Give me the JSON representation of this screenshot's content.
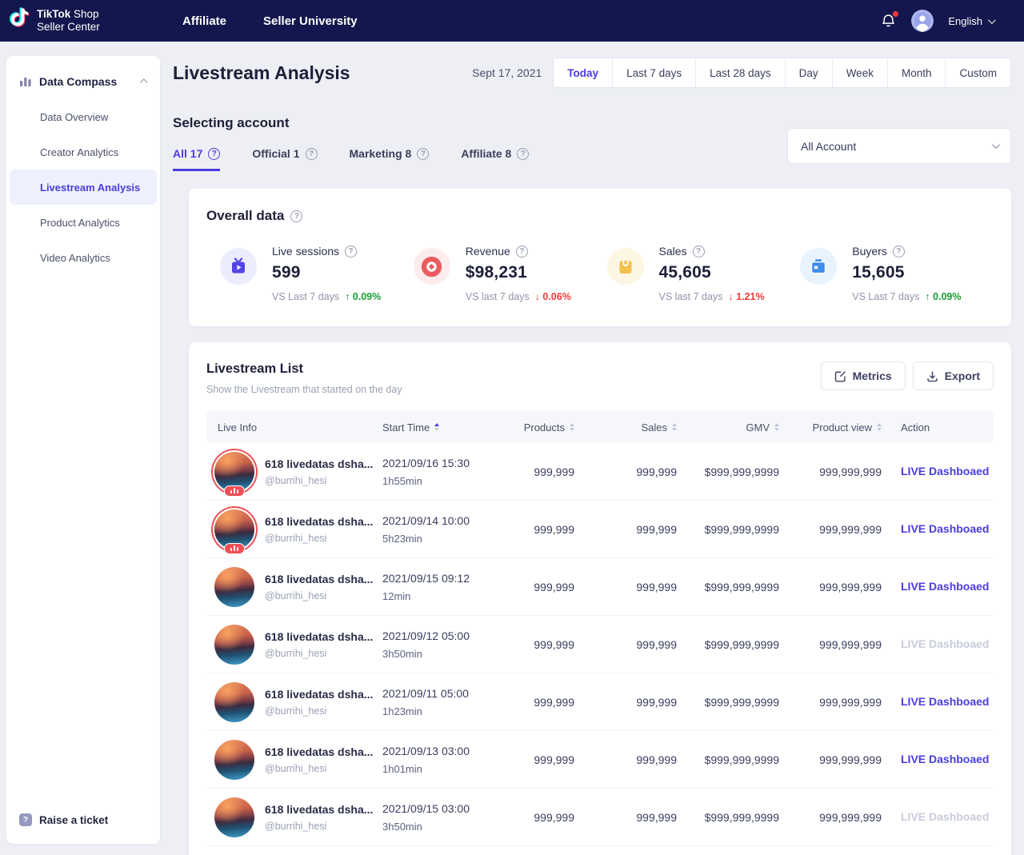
{
  "topnav": {
    "logo": {
      "brand": "TikTok",
      "suffix": " Shop",
      "line2": "Seller Center"
    },
    "nav_items": [
      "Affiliate",
      "Seller University"
    ],
    "language": "English"
  },
  "sidebar": {
    "section_label": "Data Compass",
    "items": [
      {
        "label": "Data Overview",
        "active": false
      },
      {
        "label": "Creator Analytics",
        "active": false
      },
      {
        "label": "Livestream Analysis",
        "active": true
      },
      {
        "label": "Product Analytics",
        "active": false
      },
      {
        "label": "Video Analytics",
        "active": false
      }
    ],
    "raise_ticket_label": "Raise a ticket"
  },
  "header": {
    "title": "Livestream Analysis",
    "date_label": "Sept 17, 2021",
    "range_buttons": [
      {
        "label": "Today",
        "active": true
      },
      {
        "label": "Last 7 days",
        "active": false
      },
      {
        "label": "Last 28 days",
        "active": false
      },
      {
        "label": "Day",
        "active": false
      },
      {
        "label": "Week",
        "active": false
      },
      {
        "label": "Month",
        "active": false
      },
      {
        "label": "Custom",
        "active": false
      }
    ]
  },
  "account_section": {
    "heading": "Selecting account",
    "tabs": [
      {
        "label": "All 17",
        "active": true
      },
      {
        "label": "Official 1",
        "active": false
      },
      {
        "label": "Marketing 8",
        "active": false
      },
      {
        "label": "Affiliate 8",
        "active": false
      }
    ],
    "account_dropdown_value": "All Account"
  },
  "overall_data": {
    "heading": "Overall data",
    "stats": [
      {
        "label": "Live sessions",
        "value": "599",
        "compare_label": "VS Last 7 days",
        "delta": "0.09%",
        "direction": "up",
        "icon": "live-tv-icon"
      },
      {
        "label": "Revenue",
        "value": "$98,231",
        "compare_label": "VS last 7 days",
        "delta": "0.06%",
        "direction": "down",
        "icon": "record-icon"
      },
      {
        "label": "Sales",
        "value": "45,605",
        "compare_label": "VS last 7 days",
        "delta": "1.21%",
        "direction": "down",
        "icon": "shopping-bag-icon"
      },
      {
        "label": "Buyers",
        "value": "15,605",
        "compare_label": "VS Last 7 days",
        "delta": "0.09%",
        "direction": "up",
        "icon": "wallet-icon"
      }
    ]
  },
  "livestream_list": {
    "title": "Livestream List",
    "subtitle": "Show the Livestream that started on the day",
    "metrics_button": "Metrics",
    "export_button": "Export",
    "columns": [
      {
        "label": "Live Info",
        "sortable": false,
        "align": "left"
      },
      {
        "label": "Start Time",
        "sortable": true,
        "sorted": "asc",
        "align": "left"
      },
      {
        "label": "Products",
        "sortable": true,
        "align": "right"
      },
      {
        "label": "Sales",
        "sortable": true,
        "align": "right"
      },
      {
        "label": "GMV",
        "sortable": true,
        "align": "right"
      },
      {
        "label": "Product view",
        "sortable": true,
        "align": "right"
      },
      {
        "label": "Action",
        "sortable": false,
        "align": "left"
      }
    ],
    "rows": [
      {
        "name": "618 livedatas dsha...",
        "handle": "@burrihi_hesi",
        "start_time": "2021/09/16 15:30",
        "duration": "1h55min",
        "products": "999,999",
        "sales": "999,999",
        "gmv": "$999,999,9999",
        "product_view": "999,999,999",
        "action": "LIVE Dashboaed",
        "is_live": true,
        "action_disabled": false
      },
      {
        "name": "618 livedatas dsha...",
        "handle": "@burrihi_hesi",
        "start_time": "2021/09/14 10:00",
        "duration": "5h23min",
        "products": "999,999",
        "sales": "999,999",
        "gmv": "$999,999,9999",
        "product_view": "999,999,999",
        "action": "LIVE Dashboaed",
        "is_live": true,
        "action_disabled": false
      },
      {
        "name": "618 livedatas dsha...",
        "handle": "@burrihi_hesi",
        "start_time": "2021/09/15 09:12",
        "duration": "12min",
        "products": "999,999",
        "sales": "999,999",
        "gmv": "$999,999,9999",
        "product_view": "999,999,999",
        "action": "LIVE Dashboaed",
        "is_live": false,
        "action_disabled": false
      },
      {
        "name": "618 livedatas dsha...",
        "handle": "@burrihi_hesi",
        "start_time": "2021/09/12 05:00",
        "duration": "3h50min",
        "products": "999,999",
        "sales": "999,999",
        "gmv": "$999,999,9999",
        "product_view": "999,999,999",
        "action": "LIVE Dashboaed",
        "is_live": false,
        "action_disabled": true
      },
      {
        "name": "618 livedatas dsha...",
        "handle": "@burrihi_hesi",
        "start_time": "2021/09/11 05:00",
        "duration": "1h23min",
        "products": "999,999",
        "sales": "999,999",
        "gmv": "$999,999,9999",
        "product_view": "999,999,999",
        "action": "LIVE Dashboaed",
        "is_live": false,
        "action_disabled": false
      },
      {
        "name": "618 livedatas dsha...",
        "handle": "@burrihi_hesi",
        "start_time": "2021/09/13 03:00",
        "duration": "1h01min",
        "products": "999,999",
        "sales": "999,999",
        "gmv": "$999,999,9999",
        "product_view": "999,999,999",
        "action": "LIVE Dashboaed",
        "is_live": false,
        "action_disabled": false
      },
      {
        "name": "618 livedatas dsha...",
        "handle": "@burrihi_hesi",
        "start_time": "2021/09/15 03:00",
        "duration": "3h50min",
        "products": "999,999",
        "sales": "999,999",
        "gmv": "$999,999,9999",
        "product_view": "999,999,999",
        "action": "LIVE Dashboaed",
        "is_live": false,
        "action_disabled": true
      }
    ]
  },
  "colors": {
    "accent_purple": "#4b3ce0",
    "positive_green": "#18a034",
    "negative_red": "#ee3b3b",
    "live_ring_coral": "#f04e56",
    "topnav_navy": "#14174d"
  }
}
